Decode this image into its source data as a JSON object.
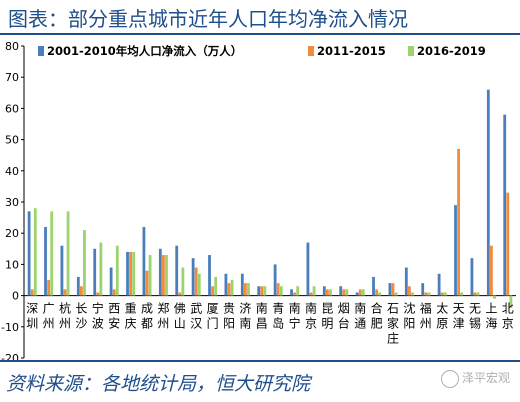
{
  "title": "图表：部分重点城市近年人口年均净流入情况",
  "source": "资料来源：各地统计局，恒大研究院",
  "watermark": "泽平宏观",
  "colors": {
    "series": [
      "#4a7ebb",
      "#f08c3c",
      "#9cd36c"
    ],
    "title": "#1f4e8c",
    "axis": "#000000",
    "grid": "#e6e6e6"
  },
  "chart_data": {
    "type": "bar",
    "ylim": [
      -20,
      80
    ],
    "yticks": [
      -20,
      -10,
      0,
      10,
      20,
      30,
      40,
      50,
      60,
      70,
      80
    ],
    "legend_position": "top-center",
    "grid": false,
    "categories": [
      "深圳",
      "广州",
      "杭州",
      "长沙",
      "宁波",
      "西安",
      "重庆",
      "成都",
      "郑州",
      "佛山",
      "武汉",
      "厦门",
      "贵阳",
      "济南",
      "南昌",
      "青岛",
      "南宁",
      "南京",
      "昆明",
      "烟台",
      "南通",
      "合肥",
      "石家庄",
      "沈阳",
      "福州",
      "太原",
      "天津",
      "无锡",
      "上海",
      "北京"
    ],
    "series": [
      {
        "name": "2001-2010年均人口净流入（万人）",
        "values": [
          27,
          22,
          16,
          6,
          15,
          9,
          14,
          22,
          15,
          16,
          12,
          13,
          7,
          7,
          3,
          10,
          2,
          17,
          3,
          3,
          1,
          6,
          4,
          9,
          4,
          7,
          29,
          12,
          66,
          58
        ]
      },
      {
        "name": "2011-2015",
        "values": [
          2,
          5,
          2,
          3,
          1,
          2,
          14,
          8,
          13,
          1,
          9,
          3,
          4,
          4,
          3,
          4,
          1,
          1,
          2,
          2,
          2,
          2,
          4,
          3,
          1,
          1,
          47,
          1,
          16,
          33
        ]
      },
      {
        "name": "2016-2019",
        "values": [
          28,
          27,
          27,
          21,
          17,
          16,
          14,
          13,
          13,
          9,
          7,
          6,
          5,
          4,
          3,
          3,
          3,
          3,
          2,
          2,
          2,
          1,
          1,
          1,
          1,
          1,
          1,
          1,
          -1,
          -4
        ]
      }
    ]
  }
}
